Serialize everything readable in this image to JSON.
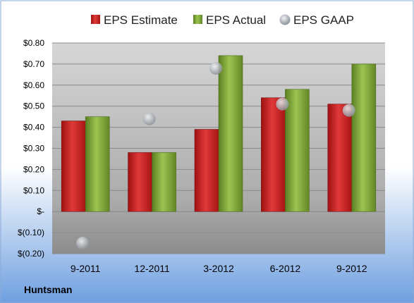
{
  "footer": {
    "company": "Huntsman"
  },
  "legend": [
    {
      "name": "EPS Estimate",
      "color": "#cc1f1f",
      "icon": "red-square"
    },
    {
      "name": "EPS Actual",
      "color": "#7aa232",
      "icon": "green-square"
    },
    {
      "name": "EPS GAAP",
      "color": "#b9bec4",
      "icon": "gray-circle"
    }
  ],
  "chart_data": {
    "type": "bar",
    "title": "",
    "xlabel": "",
    "ylabel": "",
    "categories": [
      "9-2011",
      "12-2011",
      "3-2012",
      "6-2012",
      "9-2012"
    ],
    "ylim": [
      -0.2,
      0.8
    ],
    "yticks": [
      -0.2,
      -0.1,
      0,
      0.1,
      0.2,
      0.3,
      0.4,
      0.5,
      0.6,
      0.7,
      0.8
    ],
    "ytick_labels": [
      "$(0.20)",
      "$(0.10)",
      "$-",
      "$0.10",
      "$0.20",
      "$0.30",
      "$0.40",
      "$0.50",
      "$0.60",
      "$0.70",
      "$0.80"
    ],
    "grid": true,
    "legend_position": "top",
    "series": [
      {
        "name": "EPS Estimate",
        "kind": "bar",
        "color": "#cc1f1f",
        "values": [
          0.43,
          0.28,
          0.39,
          0.54,
          0.51
        ]
      },
      {
        "name": "EPS Actual",
        "kind": "bar",
        "color": "#7aa232",
        "values": [
          0.45,
          0.28,
          0.74,
          0.58,
          0.7
        ]
      },
      {
        "name": "EPS GAAP",
        "kind": "scatter",
        "color": "#b9bec4",
        "values": [
          -0.15,
          0.44,
          0.68,
          0.51,
          0.48
        ]
      }
    ]
  }
}
